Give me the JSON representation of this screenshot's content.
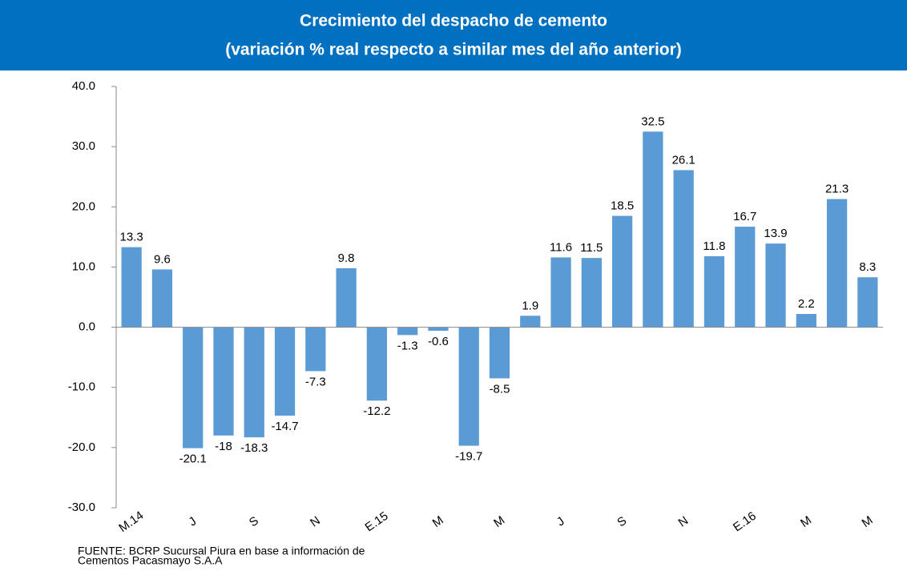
{
  "chart_data": {
    "type": "bar",
    "title": "Crecimiento del despacho de cemento",
    "subtitle": "(variación % real respecto a similar mes del año anterior)",
    "categories": [
      "M.14",
      null,
      "J",
      null,
      "S",
      null,
      "N",
      null,
      "E.15",
      null,
      "M",
      null,
      "M",
      null,
      "J",
      null,
      "S",
      null,
      "N",
      null,
      "E.16",
      null,
      "M",
      null,
      "M"
    ],
    "values": [
      13.3,
      9.6,
      -20.1,
      -18.0,
      -18.3,
      -14.7,
      -7.3,
      9.8,
      -12.2,
      -1.3,
      -0.6,
      -19.7,
      -8.5,
      1.9,
      11.6,
      11.5,
      18.5,
      32.5,
      26.1,
      11.8,
      16.7,
      13.9,
      2.2,
      21.3,
      8.3
    ],
    "color": "#5b9bd5",
    "ylim": [
      -30,
      40
    ],
    "yticks": [
      {
        "value": -30,
        "label": "-30.0"
      },
      {
        "value": -20,
        "label": "-20.0"
      },
      {
        "value": -10,
        "label": "-10.0"
      },
      {
        "value": 0,
        "label": "0.0"
      },
      {
        "value": 10,
        "label": "10.0"
      },
      {
        "value": 20,
        "label": "20.0"
      },
      {
        "value": 30,
        "label": "30.0"
      },
      {
        "value": 40,
        "label": "40.0"
      }
    ],
    "grid": false,
    "source": [
      "FUENTE:   BCRP Sucursal Piura en base a información de",
      "Cementos Pacasmayo S.A.A"
    ]
  }
}
